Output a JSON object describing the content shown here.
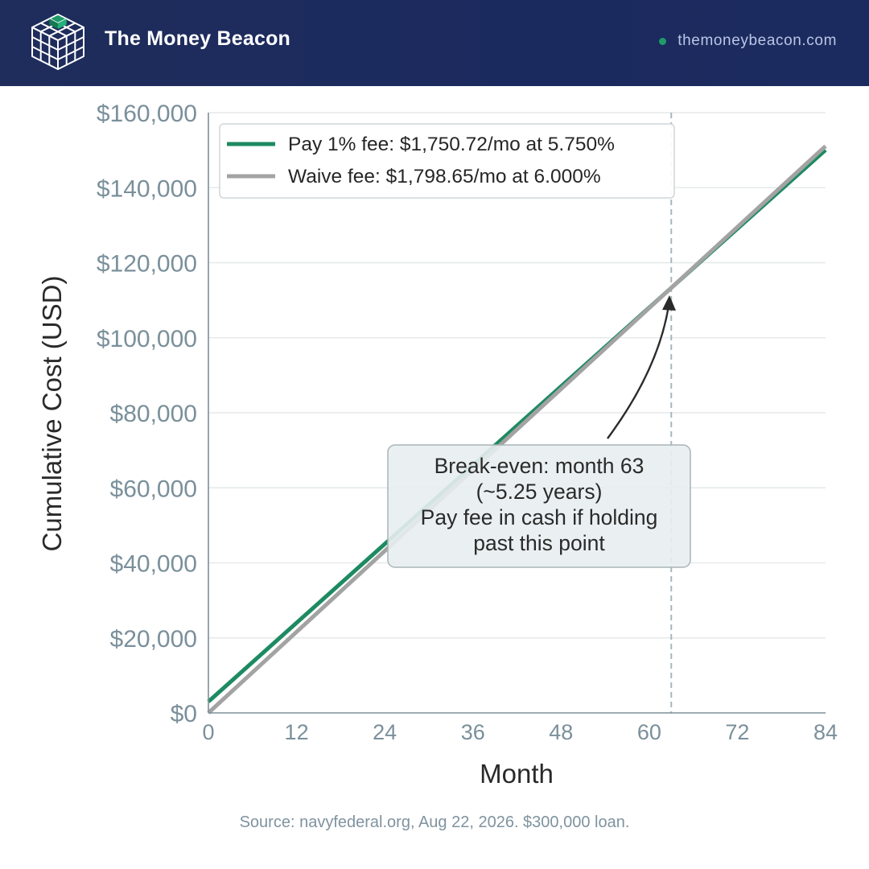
{
  "header": {
    "brand": "The Money Beacon",
    "site": "themoneybeacon.com",
    "logo_icon": "cube-grid-icon",
    "colors": {
      "background": "#1f2d5c",
      "accent": "#1f9a68"
    }
  },
  "chart_data": {
    "type": "line",
    "xlabel": "Month",
    "ylabel": "Cumulative Cost (USD)",
    "xlim": [
      0,
      84
    ],
    "ylim": [
      0,
      160000
    ],
    "x_ticks": [
      0,
      12,
      24,
      36,
      48,
      60,
      72,
      84
    ],
    "x_tick_labels": [
      "0",
      "12",
      "24",
      "36",
      "48",
      "60",
      "72",
      "84"
    ],
    "y_ticks": [
      0,
      20000,
      40000,
      60000,
      80000,
      100000,
      120000,
      140000,
      160000
    ],
    "y_tick_labels": [
      "$0",
      "$20,000",
      "$40,000",
      "$60,000",
      "$80,000",
      "$100,000",
      "$120,000",
      "$140,000",
      "$160,000"
    ],
    "grid": "horizontal",
    "legend_position": "top-left",
    "series": [
      {
        "name": "Pay 1% fee: $1,750.72/mo at 5.750%",
        "color": "#1e8a62",
        "x": [
          0,
          84
        ],
        "y": [
          3000,
          150060
        ]
      },
      {
        "name": "Waive fee: $1,798.65/mo at 6.000%",
        "color": "#a3a3a3",
        "x": [
          0,
          84
        ],
        "y": [
          0,
          151087
        ]
      }
    ],
    "break_even": {
      "month": 63,
      "value": 113295,
      "annotation": [
        "Break-even: month 63",
        "(~5.25 years)",
        "Pay fee in cash if holding",
        "past this point"
      ]
    }
  },
  "footer": {
    "source": "Source: navyfederal.org, Aug 22, 2026. $300,000 loan."
  }
}
